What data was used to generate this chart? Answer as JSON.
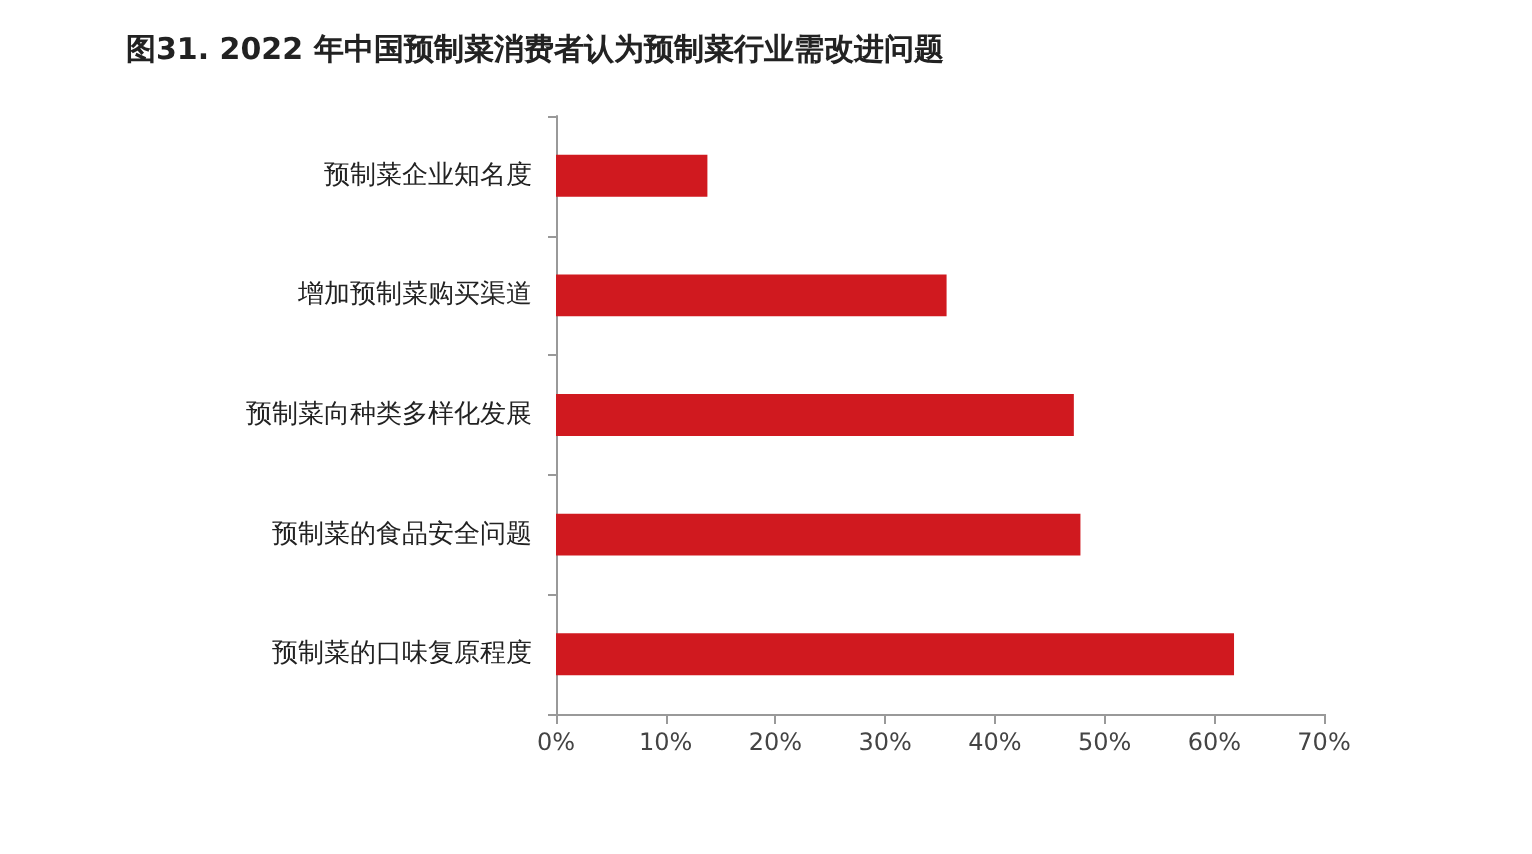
{
  "chart_data": {
    "type": "bar",
    "orientation": "horizontal",
    "title": "图31. 2022 年中国预制菜消费者认为预制菜行业需改进问题",
    "categories": [
      "预制菜企业知名度",
      "增加预制菜购买渠道",
      "预制菜向种类多样化发展",
      "预制菜的食品安全问题",
      "预制菜的口味复原程度"
    ],
    "values": [
      13.8,
      35.6,
      47.2,
      47.8,
      61.8
    ],
    "color": "#d0191f",
    "xlim": [
      0,
      70
    ],
    "xticks": [
      {
        "value": 0,
        "label": "0%"
      },
      {
        "value": 10,
        "label": "10%"
      },
      {
        "value": 20,
        "label": "20%"
      },
      {
        "value": 30,
        "label": "30%"
      },
      {
        "value": 40,
        "label": "40%"
      },
      {
        "value": 50,
        "label": "50%"
      },
      {
        "value": 60,
        "label": "60%"
      },
      {
        "value": 70,
        "label": "70%"
      }
    ],
    "grid": false
  }
}
